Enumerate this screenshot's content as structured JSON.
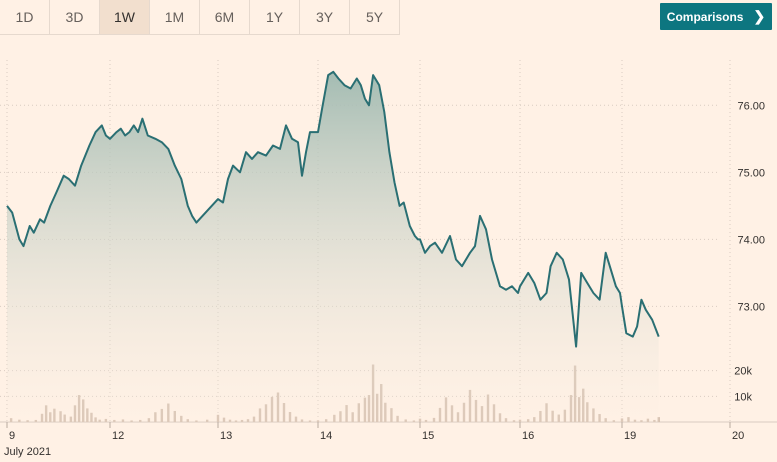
{
  "range_tabs": [
    "1D",
    "3D",
    "1W",
    "1M",
    "6M",
    "1Y",
    "3Y",
    "5Y"
  ],
  "active_range": "1W",
  "comparisons_label": "Comparisons",
  "colors": {
    "line": "#2a6f73",
    "area_top": "#9fb9b0",
    "volume": "#d4bfae",
    "grid": "#d9ccc1",
    "button": "#0d7680",
    "background": "#fff1e5"
  },
  "chart_data": {
    "type": "line",
    "price_axis": {
      "ticks": [
        "76.00",
        "75.00",
        "74.00",
        "73.00"
      ],
      "ylim": [
        72.35,
        76.75
      ]
    },
    "volume_axis": {
      "ticks": [
        "20k",
        "10k"
      ],
      "ylim": [
        0,
        30000
      ]
    },
    "x_tick_labels": [
      "9",
      "12",
      "13",
      "14",
      "15",
      "16",
      "19",
      "20"
    ],
    "month_label": "July 2021",
    "price_series": [
      [
        0,
        74.5
      ],
      [
        0.05,
        74.4
      ],
      [
        0.12,
        74.0
      ],
      [
        0.16,
        73.9
      ],
      [
        0.22,
        74.2
      ],
      [
        0.26,
        74.1
      ],
      [
        0.32,
        74.3
      ],
      [
        0.36,
        74.25
      ],
      [
        0.42,
        74.5
      ],
      [
        0.48,
        74.7
      ],
      [
        0.55,
        74.95
      ],
      [
        0.6,
        74.9
      ],
      [
        0.66,
        74.8
      ],
      [
        0.72,
        75.1
      ],
      [
        0.8,
        75.4
      ],
      [
        0.86,
        75.6
      ],
      [
        0.92,
        75.7
      ],
      [
        0.96,
        75.55
      ],
      [
        1.0,
        75.5
      ],
      [
        1.06,
        75.6
      ],
      [
        1.1,
        75.65
      ],
      [
        1.14,
        75.55
      ],
      [
        1.18,
        75.6
      ],
      [
        1.22,
        75.7
      ],
      [
        1.26,
        75.6
      ],
      [
        1.3,
        75.8
      ],
      [
        1.35,
        75.55
      ],
      [
        1.42,
        75.5
      ],
      [
        1.48,
        75.45
      ],
      [
        1.54,
        75.35
      ],
      [
        1.6,
        75.1
      ],
      [
        1.66,
        74.9
      ],
      [
        1.72,
        74.5
      ],
      [
        1.76,
        74.35
      ],
      [
        1.8,
        74.25
      ],
      [
        2.0,
        74.6
      ],
      [
        2.05,
        74.55
      ],
      [
        2.1,
        74.9
      ],
      [
        2.15,
        75.1
      ],
      [
        2.22,
        75.0
      ],
      [
        2.28,
        75.3
      ],
      [
        2.34,
        75.2
      ],
      [
        2.4,
        75.3
      ],
      [
        2.48,
        75.25
      ],
      [
        2.55,
        75.4
      ],
      [
        2.62,
        75.35
      ],
      [
        2.68,
        75.7
      ],
      [
        2.74,
        75.5
      ],
      [
        2.8,
        75.45
      ],
      [
        2.84,
        74.95
      ],
      [
        2.88,
        75.3
      ],
      [
        2.92,
        75.6
      ],
      [
        3.0,
        75.6
      ],
      [
        3.04,
        75.95
      ],
      [
        3.1,
        76.45
      ],
      [
        3.15,
        76.5
      ],
      [
        3.2,
        76.4
      ],
      [
        3.26,
        76.3
      ],
      [
        3.32,
        76.25
      ],
      [
        3.38,
        76.4
      ],
      [
        3.42,
        76.3
      ],
      [
        3.46,
        76.1
      ],
      [
        3.5,
        76.0
      ],
      [
        3.54,
        76.45
      ],
      [
        3.6,
        76.3
      ],
      [
        3.65,
        75.9
      ],
      [
        3.7,
        75.3
      ],
      [
        3.75,
        74.85
      ],
      [
        3.8,
        74.5
      ],
      [
        3.84,
        74.55
      ],
      [
        3.9,
        74.2
      ],
      [
        3.95,
        74.05
      ],
      [
        3.98,
        74.0
      ],
      [
        4.0,
        74.0
      ],
      [
        4.05,
        73.8
      ],
      [
        4.1,
        73.9
      ],
      [
        4.15,
        73.95
      ],
      [
        4.22,
        73.8
      ],
      [
        4.3,
        74.05
      ],
      [
        4.36,
        73.7
      ],
      [
        4.42,
        73.6
      ],
      [
        4.5,
        73.8
      ],
      [
        4.55,
        73.9
      ],
      [
        4.6,
        74.35
      ],
      [
        4.66,
        74.15
      ],
      [
        4.72,
        73.7
      ],
      [
        4.8,
        73.3
      ],
      [
        4.86,
        73.25
      ],
      [
        4.92,
        73.3
      ],
      [
        4.98,
        73.2
      ],
      [
        5.0,
        73.3
      ],
      [
        5.08,
        73.5
      ],
      [
        5.14,
        73.35
      ],
      [
        5.2,
        73.1
      ],
      [
        5.26,
        73.2
      ],
      [
        5.3,
        73.6
      ],
      [
        5.36,
        73.8
      ],
      [
        5.42,
        73.7
      ],
      [
        5.48,
        73.4
      ],
      [
        5.55,
        72.4
      ],
      [
        5.6,
        73.5
      ],
      [
        5.66,
        73.35
      ],
      [
        5.72,
        73.2
      ],
      [
        5.78,
        73.1
      ],
      [
        5.84,
        73.8
      ],
      [
        5.88,
        73.6
      ],
      [
        5.94,
        73.3
      ],
      [
        5.98,
        73.2
      ],
      [
        6.0,
        73.0
      ],
      [
        6.04,
        72.6
      ],
      [
        6.1,
        72.55
      ],
      [
        6.14,
        72.7
      ],
      [
        6.18,
        73.1
      ],
      [
        6.22,
        72.95
      ],
      [
        6.28,
        72.8
      ],
      [
        6.34,
        72.55
      ]
    ],
    "volume_series": [
      [
        0.04,
        1500
      ],
      [
        0.12,
        900
      ],
      [
        0.2,
        700
      ],
      [
        0.28,
        800
      ],
      [
        0.34,
        3200
      ],
      [
        0.38,
        6500
      ],
      [
        0.42,
        3800
      ],
      [
        0.46,
        5200
      ],
      [
        0.52,
        4200
      ],
      [
        0.56,
        2900
      ],
      [
        0.62,
        2100
      ],
      [
        0.66,
        6500
      ],
      [
        0.7,
        10500
      ],
      [
        0.74,
        8800
      ],
      [
        0.78,
        5300
      ],
      [
        0.82,
        3600
      ],
      [
        0.86,
        1800
      ],
      [
        0.9,
        900
      ],
      [
        0.96,
        1200
      ],
      [
        1.04,
        800
      ],
      [
        1.12,
        1000
      ],
      [
        1.2,
        600
      ],
      [
        1.28,
        800
      ],
      [
        1.36,
        1500
      ],
      [
        1.42,
        3800
      ],
      [
        1.48,
        5100
      ],
      [
        1.54,
        7200
      ],
      [
        1.6,
        4300
      ],
      [
        1.66,
        2400
      ],
      [
        1.72,
        1100
      ],
      [
        1.8,
        600
      ],
      [
        1.9,
        900
      ],
      [
        2.0,
        2800
      ],
      [
        2.06,
        1700
      ],
      [
        2.12,
        900
      ],
      [
        2.18,
        600
      ],
      [
        2.24,
        800
      ],
      [
        2.3,
        1100
      ],
      [
        2.36,
        2100
      ],
      [
        2.42,
        5300
      ],
      [
        2.48,
        6900
      ],
      [
        2.54,
        9800
      ],
      [
        2.6,
        11500
      ],
      [
        2.66,
        7400
      ],
      [
        2.72,
        3900
      ],
      [
        2.78,
        2100
      ],
      [
        2.84,
        1000
      ],
      [
        2.92,
        600
      ],
      [
        3.0,
        600
      ],
      [
        3.08,
        1100
      ],
      [
        3.16,
        2800
      ],
      [
        3.22,
        4200
      ],
      [
        3.28,
        6600
      ],
      [
        3.34,
        3800
      ],
      [
        3.4,
        7300
      ],
      [
        3.46,
        9500
      ],
      [
        3.5,
        10500
      ],
      [
        3.54,
        22400
      ],
      [
        3.58,
        11000
      ],
      [
        3.62,
        14800
      ],
      [
        3.66,
        7500
      ],
      [
        3.72,
        5400
      ],
      [
        3.78,
        2400
      ],
      [
        3.86,
        1000
      ],
      [
        3.94,
        600
      ],
      [
        4.0,
        1300
      ],
      [
        4.06,
        800
      ],
      [
        4.14,
        1600
      ],
      [
        4.2,
        5500
      ],
      [
        4.26,
        9600
      ],
      [
        4.32,
        6500
      ],
      [
        4.38,
        3800
      ],
      [
        4.44,
        7500
      ],
      [
        4.5,
        12500
      ],
      [
        4.56,
        8600
      ],
      [
        4.62,
        6200
      ],
      [
        4.68,
        10700
      ],
      [
        4.74,
        6900
      ],
      [
        4.8,
        3400
      ],
      [
        4.86,
        1500
      ],
      [
        4.94,
        700
      ],
      [
        5.0,
        900
      ],
      [
        5.08,
        1100
      ],
      [
        5.14,
        1900
      ],
      [
        5.2,
        4300
      ],
      [
        5.26,
        7300
      ],
      [
        5.32,
        4400
      ],
      [
        5.38,
        2900
      ],
      [
        5.44,
        4800
      ],
      [
        5.5,
        10500
      ],
      [
        5.54,
        22000
      ],
      [
        5.58,
        9700
      ],
      [
        5.62,
        13000
      ],
      [
        5.66,
        7700
      ],
      [
        5.72,
        5300
      ],
      [
        5.78,
        3100
      ],
      [
        5.84,
        1500
      ],
      [
        5.92,
        700
      ],
      [
        6.0,
        1400
      ],
      [
        6.06,
        1900
      ],
      [
        6.12,
        900
      ],
      [
        6.18,
        700
      ],
      [
        6.24,
        1300
      ],
      [
        6.3,
        800
      ],
      [
        6.34,
        1900
      ]
    ]
  }
}
